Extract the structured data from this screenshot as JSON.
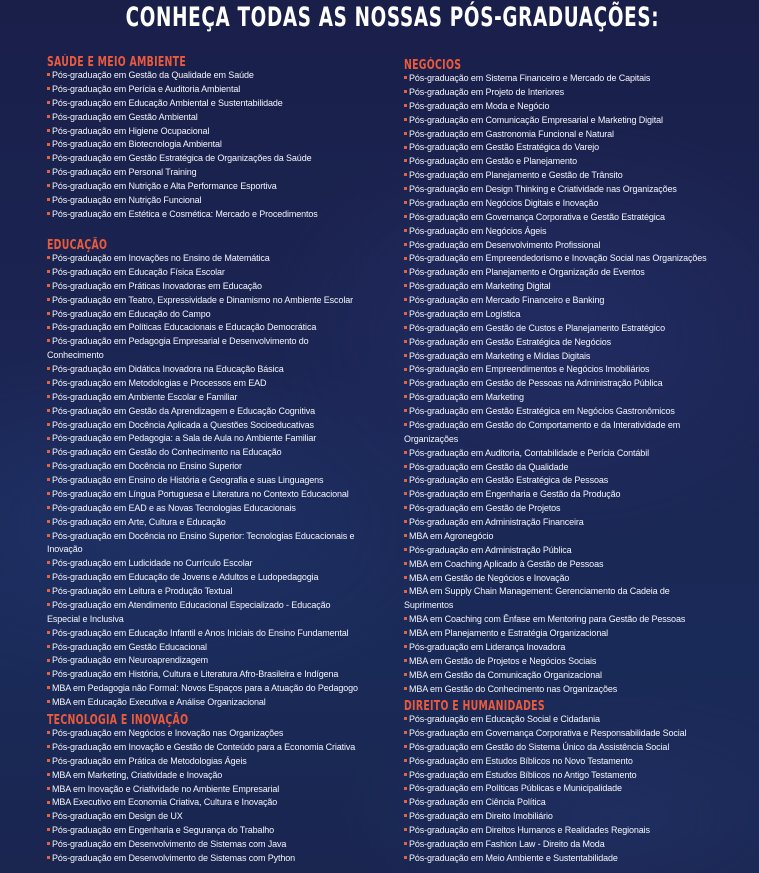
{
  "title": "CONHEÇA TODAS AS NOSSAS PÓS-GRADUAÇÕES:",
  "colors": {
    "background": "#1b2553",
    "heading": "#ec5a3c",
    "bullet": "#e5623f",
    "text": "#f4f5fa"
  },
  "bullet_icon": "small-square",
  "sections": [
    {
      "id": "saude",
      "title": "SAÚDE E MEIO AMBIENTE",
      "items": [
        "Pós-graduação em Gestão da Qualidade em Saúde",
        "Pós-graduação em Perícia e Auditoria Ambiental",
        "Pós-graduação em Educação Ambiental e Sustentabilidade",
        "Pós-graduação em Gestão Ambiental",
        "Pós-graduação em Higiene Ocupacional",
        "Pós-graduação em Biotecnologia Ambiental",
        "Pós-graduação em Gestão Estratégica de Organizações da Saúde",
        "Pós-graduação em Personal Training",
        "Pós-graduação em Nutrição e Alta Performance Esportiva",
        "Pós-graduação em Nutrição Funcional",
        "Pós-graduação em Estética e Cosmética: Mercado e Procedimentos"
      ]
    },
    {
      "id": "educacao",
      "title": "EDUCAÇÃO",
      "items": [
        "Pós-graduação em Inovações no Ensino de Matemática",
        "Pós-graduação em Educação Física Escolar",
        "Pós-graduação em Práticas Inovadoras em Educação",
        "Pós-graduação em Teatro, Expressividade e Dinamismo no Ambiente Escolar",
        "Pós-graduação em Educação do Campo",
        "Pós-graduação em Políticas Educacionais e Educação Democrática",
        "Pós-graduação em Pedagogia Empresarial e Desenvolvimento do Conhecimento",
        "Pós-graduação em Didática Inovadora na Educação Básica",
        "Pós-graduação em Metodologias e Processos em EAD",
        "Pós-graduação em Ambiente Escolar e Familiar",
        "Pós-graduação em Gestão da Aprendizagem e Educação Cognitiva",
        "Pós-graduação em Docência Aplicada a Questões Socioeducativas",
        "Pós-graduação em Pedagogia: a Sala de Aula no Ambiente Familiar",
        "Pós-graduação em Gestão do Conhecimento na Educação",
        "Pós-graduação em Docência no Ensino Superior",
        "Pós-graduação em Ensino de História e Geografia e suas Linguagens",
        "Pós-graduação em Língua Portuguesa e Literatura no Contexto Educacional",
        "Pós-graduação em EAD e as Novas Tecnologias Educacionais",
        "Pós-graduação em Arte, Cultura e Educação",
        "Pós-graduação em Docência no Ensino Superior: Tecnologias Educacionais e Inovação",
        "Pós-graduação em Ludicidade no Currículo Escolar",
        "Pós-graduação em Educação de Jovens e Adultos e Ludopedagogia",
        "Pós-graduação em Leitura e Produção Textual",
        "Pós-graduação em Atendimento Educacional Especializado - Educação Especial e Inclusiva",
        "Pós-graduação em Educação Infantil e Anos Iniciais do Ensino Fundamental",
        "Pós-graduação em Gestão Educacional",
        "Pós-graduação em Neuroaprendizagem",
        "Pós-graduação em História, Cultura e Literatura Afro-Brasileira e Indígena",
        "MBA em Pedagogia não Formal: Novos Espaços para a Atuação do Pedagogo",
        "MBA em Educação Executiva e Análise Organizacional"
      ]
    },
    {
      "id": "tecnologia",
      "title": "TECNOLOGIA E INOVAÇÃO",
      "items": [
        "Pós-graduação em Negócios e Inovação nas Organizações",
        "Pós-graduação em Inovação e Gestão de Conteúdo para a Economia Criativa",
        "Pós-graduação em Prática de Metodologias Ágeis",
        "MBA em Marketing, Criatividade e Inovação",
        "MBA em Inovação e Criatividade no Ambiente Empresarial",
        "MBA Executivo em Economia Criativa, Cultura e Inovação",
        "Pós-graduação em Design de UX",
        "Pós-graduação em Engenharia e Segurança do Trabalho",
        "Pós-graduação em Desenvolvimento de Sistemas com Java",
        "Pós-graduação em Desenvolvimento de Sistemas com Python"
      ]
    },
    {
      "id": "negocios",
      "title": "NEGÓCIOS",
      "items": [
        "Pós-graduação em Sistema Financeiro e Mercado de Capitais",
        "Pós-graduação em Projeto de Interiores",
        "Pós-graduação em Moda e Negócio",
        "Pós-graduação em Comunicação Empresarial e Marketing Digital",
        "Pós-graduação em Gastronomia Funcional e Natural",
        "Pós-graduação em Gestão Estratégica do Varejo",
        "Pós-graduação em Gestão e Planejamento",
        "Pós-graduação em Planejamento e Gestão de Trânsito",
        "Pós-graduação em Design Thinking e Criatividade nas Organizações",
        "Pós-graduação em Negócios Digitais e Inovação",
        "Pós-graduação em Governança Corporativa  e Gestão Estratégica",
        "Pós-graduação em Negócios Ágeis",
        "Pós-graduação em Desenvolvimento Profissional",
        "Pós-graduação em Empreendedorismo e Inovação Social nas Organizações",
        "Pós-graduação em Planejamento e Organização de Eventos",
        "Pós-graduação em Marketing Digital",
        "Pós-graduação em Mercado Financeiro e Banking",
        "Pós-graduação em Logística",
        "Pós-graduação em Gestão de Custos e Planejamento Estratégico",
        "Pós-graduação em Gestão Estratégica de Negócios",
        "Pós-graduação em Marketing e Mídias Digitais",
        "Pós-graduação em Empreendimentos e Negócios Imobiliários",
        "Pós-graduação em Gestão de Pessoas na Administração Pública",
        "Pós-graduação em Marketing",
        "Pós-graduação em Gestão Estratégica em Negócios Gastronômicos",
        "Pós-graduação em Gestão do Comportamento e da Interatividade em Organizações",
        "Pós-graduação em Auditoria, Contabilidade e Perícia Contábil",
        "Pós-graduação em Gestão da Qualidade",
        "Pós-graduação em Gestão Estratégica de Pessoas",
        "Pós-graduação em Engenharia e Gestão da Produção",
        "Pós-graduação em Gestão de Projetos",
        "Pós-graduação em Administração Financeira",
        "MBA em Agronegócio",
        "Pós-graduação em Administração Pública",
        "MBA em Coaching Aplicado à Gestão de Pessoas",
        "MBA em Gestão de Negócios e Inovação",
        "MBA em Supply Chain Management: Gerenciamento da Cadeia de Suprimentos",
        "MBA em Coaching com Ênfase em Mentoring para Gestão de Pessoas",
        "MBA em Planejamento e Estratégia Organizacional",
        "Pós-graduação em Liderança Inovadora",
        "MBA em Gestão de Projetos e Negócios Sociais",
        "MBA em Gestão da Comunicação Organizacional",
        "MBA em Gestão do Conhecimento nas Organizações"
      ]
    },
    {
      "id": "direito",
      "title": "DIREITO E HUMANIDADES",
      "items": [
        "Pós-graduação em Educação Social e Cidadania",
        "Pós-graduação em Governança Corporativa e Responsabilidade Social",
        "Pós-graduação em Gestão do Sistema Único da Assistência Social",
        "Pós-graduação em Estudos Bíblicos no Novo Testamento",
        "Pós-graduação em Estudos Bíblicos no Antigo Testamento",
        "Pós-graduação em Políticas Públicas e Municipalidade",
        "Pós-graduação em Ciência Política",
        "Pós-graduação em Direito Imobiliário",
        "Pós-graduação em Direitos Humanos e Realidades Regionais",
        "Pós-graduação em Fashion Law - Direito da Moda",
        "Pós-graduação em Meio Ambiente e Sustentabilidade"
      ]
    }
  ]
}
